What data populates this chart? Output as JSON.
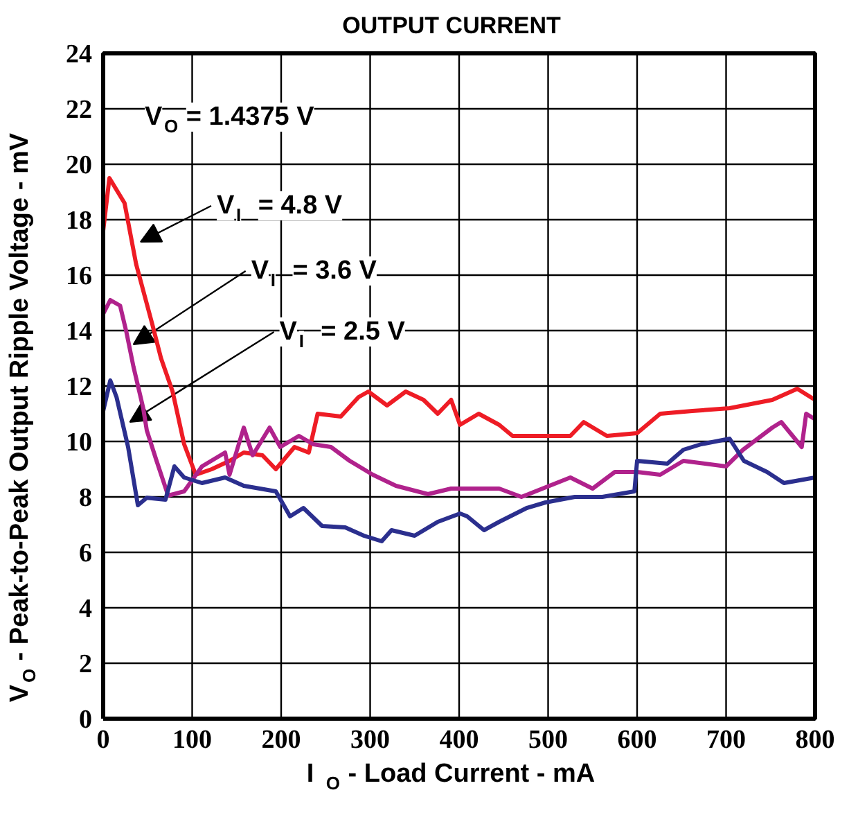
{
  "chart_data": {
    "type": "line",
    "title": "OUTPUT CURRENT",
    "xlabel": "I$_{O}$ - Load Current - mA",
    "ylabel": "V$_{O}$ - Peak-to-Peak Output Ripple Voltage - mV",
    "xlim": [
      0,
      800
    ],
    "ylim": [
      0,
      24
    ],
    "xticks": [
      0,
      100,
      200,
      300,
      400,
      500,
      600,
      700,
      800
    ],
    "yticks": [
      0,
      2,
      4,
      6,
      8,
      10,
      12,
      14,
      16,
      18,
      20,
      22,
      24
    ],
    "grid": true,
    "marker": "none",
    "line_style": "solid",
    "annotations": [
      "V$_{O}$ = 1.4375 V",
      {
        "text": "V$_{I}$ = 4.8 V",
        "x": 42,
        "y": 17.2
      },
      {
        "text": "V$_{I}$ = 3.6 V",
        "x": 34,
        "y": 13.5
      },
      {
        "text": "V$_{I}$ = 2.5 V",
        "x": 30,
        "y": 10.7
      }
    ],
    "series": [
      {
        "color": "#ee1c25",
        "x": [
          0,
          7,
          24,
          37,
          55,
          65,
          78,
          91,
          104,
          122,
          142,
          158,
          179,
          194,
          215,
          231,
          241,
          267,
          287,
          298,
          319,
          340,
          360,
          376,
          391,
          401,
          422,
          445,
          460,
          525,
          540,
          566,
          600,
          626,
          662,
          704,
          752,
          780,
          800
        ],
        "values": [
          17.6,
          19.5,
          18.6,
          16.4,
          14.25,
          13,
          11.8,
          9.9,
          8.8,
          9,
          9.3,
          9.6,
          9.5,
          9,
          9.8,
          9.6,
          11,
          10.9,
          11.6,
          11.8,
          11.3,
          11.8,
          11.5,
          11,
          11.5,
          10.6,
          11,
          10.6,
          10.2,
          10.2,
          10.7,
          10.2,
          10.3,
          11,
          11.1,
          11.2,
          11.5,
          11.9,
          11.5
        ]
      },
      {
        "color": "#b0228c",
        "x": [
          0,
          8,
          19,
          26,
          34,
          45,
          49,
          60,
          73,
          91,
          111,
          137,
          142,
          158,
          168,
          187,
          199,
          220,
          236,
          256,
          277,
          303,
          329,
          365,
          391,
          422,
          445,
          470,
          525,
          550,
          575,
          600,
          626,
          652,
          700,
          719,
          752,
          762,
          785,
          790,
          800
        ],
        "values": [
          14.6,
          15.1,
          14.9,
          13.96,
          12.7,
          11.2,
          10.4,
          9.3,
          8.05,
          8.2,
          9.1,
          9.6,
          8.8,
          10.5,
          9.5,
          10.5,
          9.8,
          10.2,
          9.9,
          9.8,
          9.3,
          8.8,
          8.4,
          8.1,
          8.3,
          8.3,
          8.3,
          8,
          8.7,
          8.3,
          8.9,
          8.9,
          8.8,
          9.3,
          9.1,
          9.7,
          10.5,
          10.7,
          9.8,
          11,
          10.8
        ]
      },
      {
        "color": "#2b2f8e",
        "x": [
          0,
          8,
          15,
          28,
          39,
          49,
          70,
          80,
          91,
          111,
          137,
          158,
          194,
          210,
          225,
          246,
          272,
          293,
          313,
          324,
          350,
          376,
          401,
          409,
          428,
          445,
          476,
          497,
          530,
          561,
          597,
          600,
          634,
          652,
          672,
          704,
          720,
          746,
          765,
          800
        ],
        "values": [
          11.1,
          12.2,
          11.6,
          9.8,
          7.7,
          7.97,
          7.9,
          9.1,
          8.7,
          8.5,
          8.7,
          8.4,
          8.2,
          7.3,
          7.6,
          6.95,
          6.9,
          6.6,
          6.4,
          6.8,
          6.6,
          7.1,
          7.4,
          7.3,
          6.8,
          7.1,
          7.6,
          7.8,
          8,
          8,
          8.2,
          9.3,
          9.2,
          9.7,
          9.9,
          10.1,
          9.3,
          8.9,
          8.5,
          8.7
        ]
      }
    ]
  }
}
